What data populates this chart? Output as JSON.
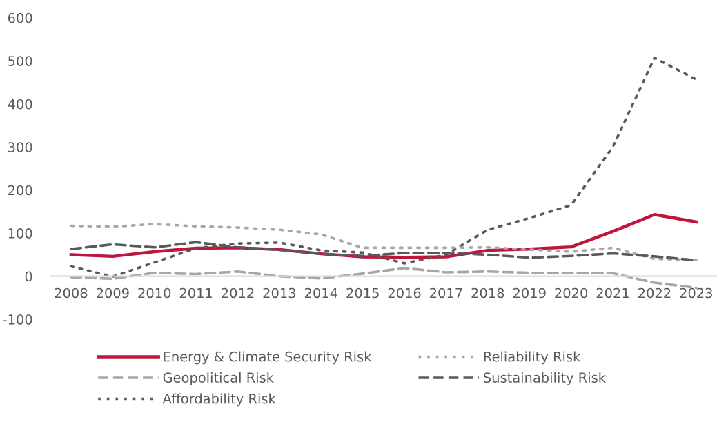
{
  "chart_data": {
    "type": "line",
    "categories": [
      "2008",
      "2009",
      "2010",
      "2011",
      "2012",
      "2013",
      "2014",
      "2015",
      "2016",
      "2017",
      "2018",
      "2019",
      "2020",
      "2021",
      "2022",
      "2023"
    ],
    "series": [
      {
        "name": "Energy & Climate Security Risk",
        "color": "#c0143c",
        "line_style": "solid",
        "values": [
          50,
          46,
          57,
          65,
          66,
          62,
          52,
          45,
          44,
          45,
          60,
          63,
          68,
          104,
          143,
          126
        ]
      },
      {
        "name": "Geopolitical Risk",
        "color": "#a6a6a6",
        "line_style": "dashed",
        "values": [
          -2,
          -6,
          8,
          5,
          11,
          0,
          -5,
          6,
          19,
          9,
          11,
          8,
          7,
          7,
          -15,
          -27
        ]
      },
      {
        "name": "Affordability Risk",
        "color": "#595959",
        "line_style": "dotted",
        "values": [
          23,
          -1,
          32,
          65,
          76,
          78,
          60,
          55,
          30,
          50,
          108,
          135,
          165,
          300,
          507,
          457
        ]
      },
      {
        "name": "Reliability Risk",
        "color": "#a6a6a6",
        "line_style": "dotted",
        "values": [
          117,
          115,
          121,
          116,
          113,
          108,
          97,
          66,
          66,
          66,
          67,
          62,
          57,
          66,
          40,
          38
        ]
      },
      {
        "name": "Sustainability Risk",
        "color": "#595959",
        "line_style": "dashed",
        "values": [
          63,
          74,
          67,
          79,
          67,
          61,
          52,
          47,
          54,
          54,
          50,
          43,
          47,
          53,
          46,
          37
        ]
      }
    ],
    "ylim": [
      -100,
      600
    ],
    "yticks": [
      -100,
      0,
      100,
      200,
      300,
      400,
      500,
      600
    ],
    "grid": false,
    "legend": "bottom",
    "marker": "none"
  }
}
